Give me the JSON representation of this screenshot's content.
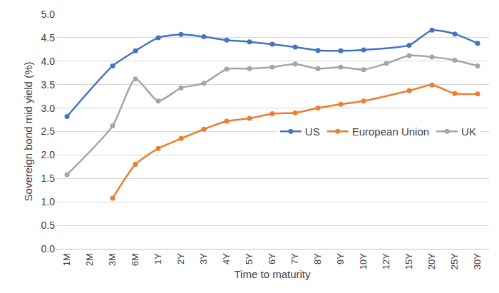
{
  "chart_data": {
    "type": "line",
    "x_label": "Time to maturity",
    "y_label": "Sovereign bond mid yield (%)",
    "categories": [
      "1M",
      "2M",
      "3M",
      "6M",
      "1Y",
      "2Y",
      "3Y",
      "4Y",
      "5Y",
      "6Y",
      "7Y",
      "8Y",
      "9Y",
      "10Y",
      "12Y",
      "15Y",
      "20Y",
      "25Y",
      "30Y"
    ],
    "series": [
      {
        "name": "US",
        "color": "#4472c4",
        "values": [
          2.82,
          null,
          3.9,
          4.22,
          4.5,
          4.57,
          4.52,
          4.45,
          4.41,
          4.36,
          4.3,
          4.23,
          4.22,
          4.24,
          null,
          4.34,
          4.66,
          4.58,
          4.38
        ]
      },
      {
        "name": "European Union",
        "color": "#ed7d31",
        "values": [
          null,
          null,
          1.08,
          1.8,
          2.14,
          2.35,
          2.55,
          2.72,
          2.78,
          2.88,
          2.9,
          3.0,
          3.08,
          3.15,
          null,
          3.37,
          3.49,
          3.31,
          3.3
        ]
      },
      {
        "name": "UK",
        "color": "#a5a5a5",
        "values": [
          1.58,
          null,
          2.62,
          3.62,
          3.15,
          3.43,
          3.53,
          3.83,
          3.84,
          3.87,
          3.94,
          3.84,
          3.87,
          3.82,
          3.95,
          4.12,
          4.09,
          4.02,
          3.9
        ]
      }
    ],
    "ylim": [
      0,
      5
    ],
    "yticks": [
      {
        "value": 0,
        "label": "0.0"
      },
      0.5,
      {
        "value": 1,
        "label": "1.0"
      },
      1.5,
      {
        "value": 2,
        "label": "2.0"
      },
      2.5,
      {
        "value": 3,
        "label": "3.0"
      },
      3.5,
      {
        "value": 4,
        "label": "4.0"
      },
      4.5,
      {
        "value": 5,
        "label": "5.0"
      }
    ],
    "grid": true,
    "legend": "right",
    "marker": "circle",
    "line_style": "smooth"
  }
}
